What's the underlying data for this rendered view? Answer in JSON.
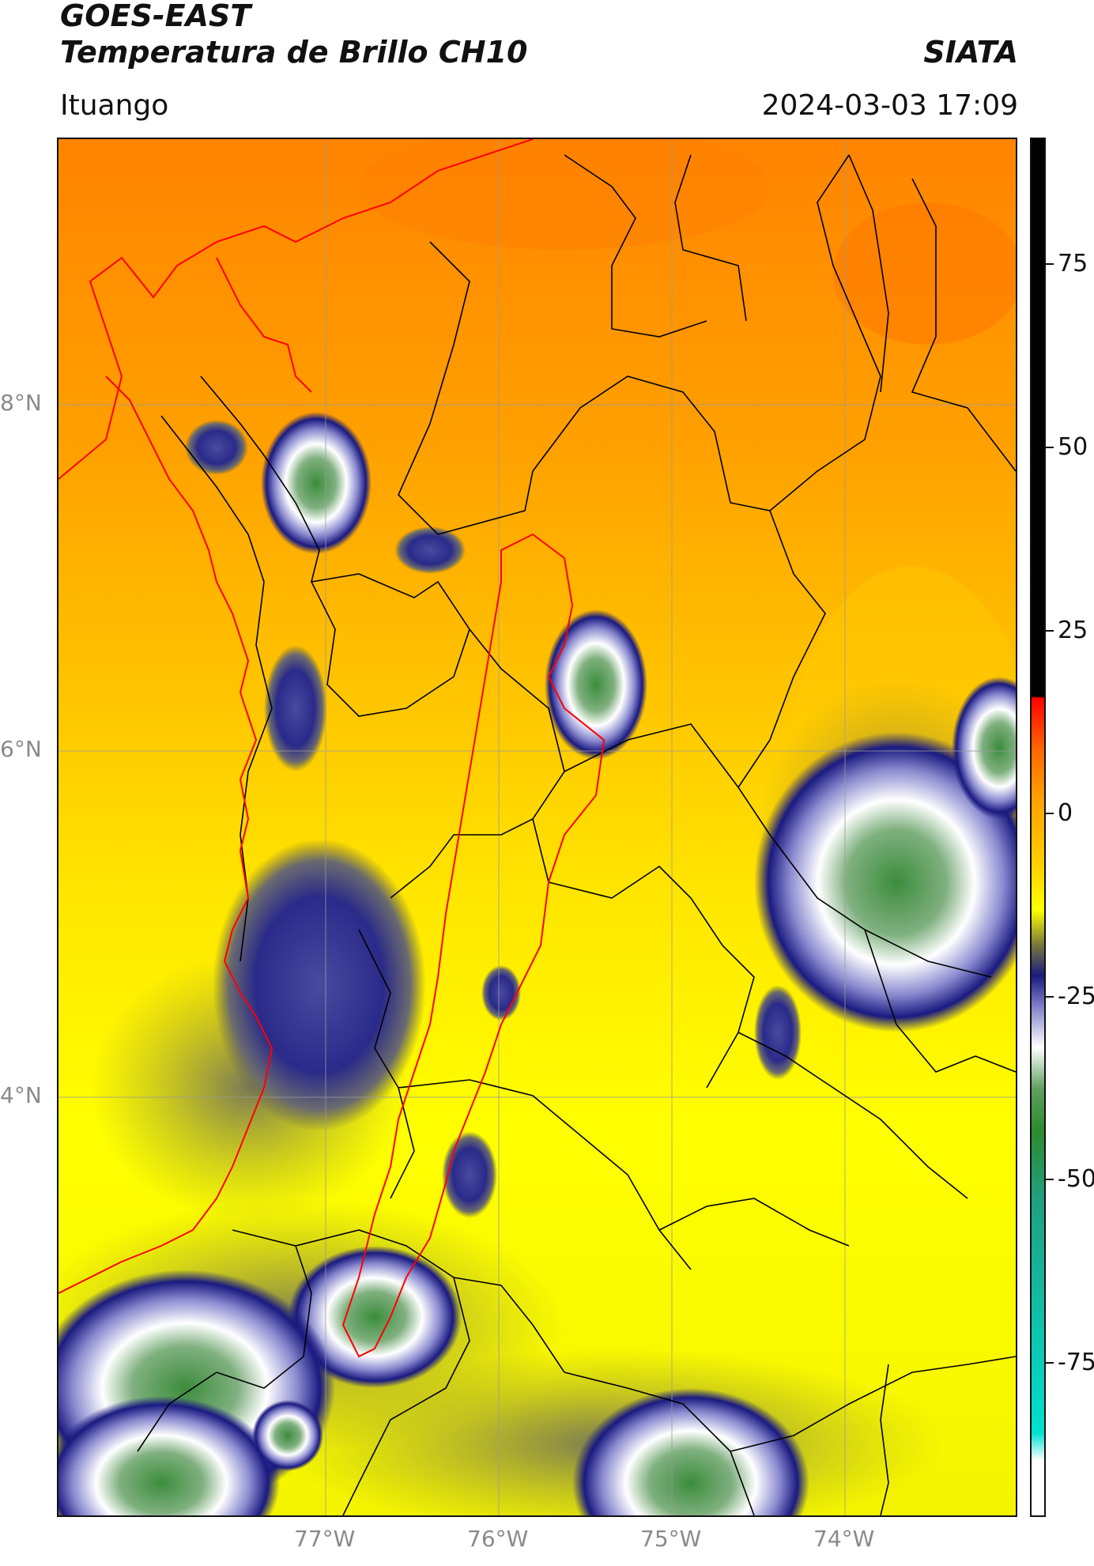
{
  "header": {
    "satellite": "GOES-EAST",
    "product": "Temperatura de Brillo CH10",
    "organization": "SIATA",
    "location": "Ituango",
    "timestamp": "2024-03-03 17:09"
  },
  "map": {
    "lat_labels": [
      "8°N",
      "6°N",
      "4°N"
    ],
    "lon_labels": [
      "77°W",
      "76°W",
      "75°W",
      "74°W"
    ],
    "gridlines": true
  },
  "colorbar": {
    "ticks": [
      "75",
      "50",
      "25",
      "0",
      "-25",
      "-50",
      "-75"
    ],
    "colors": {
      "warm": "#ff8c00",
      "mid": "#ffff00",
      "cold": "#1a1a80",
      "very_cold": "#2e8b2e",
      "top": "#000000",
      "red": "#ff0000"
    }
  }
}
